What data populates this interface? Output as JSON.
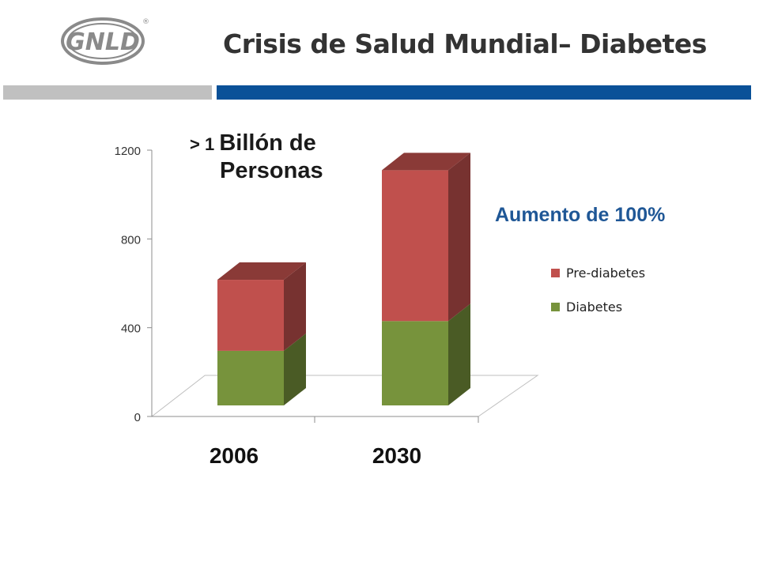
{
  "header": {
    "title": "Crisis de Salud Mundial– Diabetes",
    "logo_text": "GNLD",
    "registered_mark": "®"
  },
  "annotations": {
    "callout_prefix": "> 1",
    "callout_word": "Billón de",
    "callout_line2": "Personas",
    "increase_text": "Aumento de 100%"
  },
  "colors": {
    "diabetes": "#77933c",
    "pre_diabetes": "#c0504d",
    "accent_blue": "#0a5198",
    "accent_gray": "#c0c0c0"
  },
  "chart_data": {
    "type": "bar",
    "stacked": true,
    "three_d": true,
    "categories": [
      "2006",
      "2030"
    ],
    "series": [
      {
        "name": "Diabetes",
        "values": [
          246,
          380
        ]
      },
      {
        "name": "Pre-diabetes",
        "values": [
          320,
          680
        ]
      }
    ],
    "ylim": [
      0,
      1200
    ],
    "yticks": [
      "0",
      "400",
      "800",
      "1200"
    ],
    "legend_position": "right",
    "grid": false
  }
}
